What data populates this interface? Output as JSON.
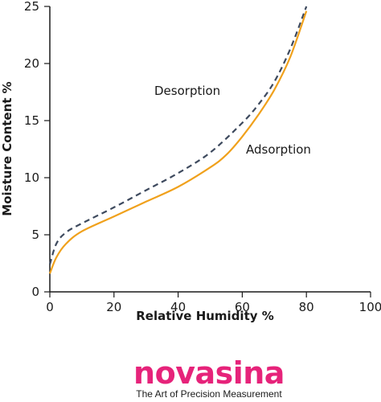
{
  "colors": {
    "adsorption": "#f0a11c",
    "desorption": "#3e4a5e",
    "axis": "#1a1a1a",
    "brand": "#e6237a"
  },
  "chart_data": {
    "type": "line",
    "xlabel": "Relative Humidity %",
    "ylabel": "Moisture Content %",
    "xlim": [
      0,
      100
    ],
    "ylim": [
      0,
      25
    ],
    "xticks": [
      0,
      20,
      40,
      60,
      80,
      100
    ],
    "yticks": [
      0,
      5,
      10,
      15,
      20,
      25
    ],
    "grid": false,
    "series": [
      {
        "name": "Desorption",
        "style": "dashed",
        "color": "#3e4a5e",
        "x": [
          0,
          2,
          5,
          10,
          20,
          30,
          40,
          50,
          60,
          65,
          70,
          75,
          80
        ],
        "y": [
          2.4,
          4.2,
          5.2,
          6.0,
          7.4,
          8.9,
          10.4,
          12.2,
          14.8,
          16.4,
          18.4,
          21.3,
          25.0
        ]
      },
      {
        "name": "Adsorption",
        "style": "solid",
        "color": "#f0a11c",
        "x": [
          0,
          2,
          5,
          10,
          20,
          30,
          40,
          50,
          55,
          60,
          65,
          70,
          75,
          80
        ],
        "y": [
          1.6,
          3.0,
          4.2,
          5.3,
          6.6,
          7.9,
          9.2,
          10.9,
          12.0,
          13.6,
          15.5,
          17.7,
          20.6,
          24.6
        ]
      }
    ]
  },
  "logo": {
    "wordmark": "novasina",
    "tagline": "The Art of Precision Measurement"
  }
}
